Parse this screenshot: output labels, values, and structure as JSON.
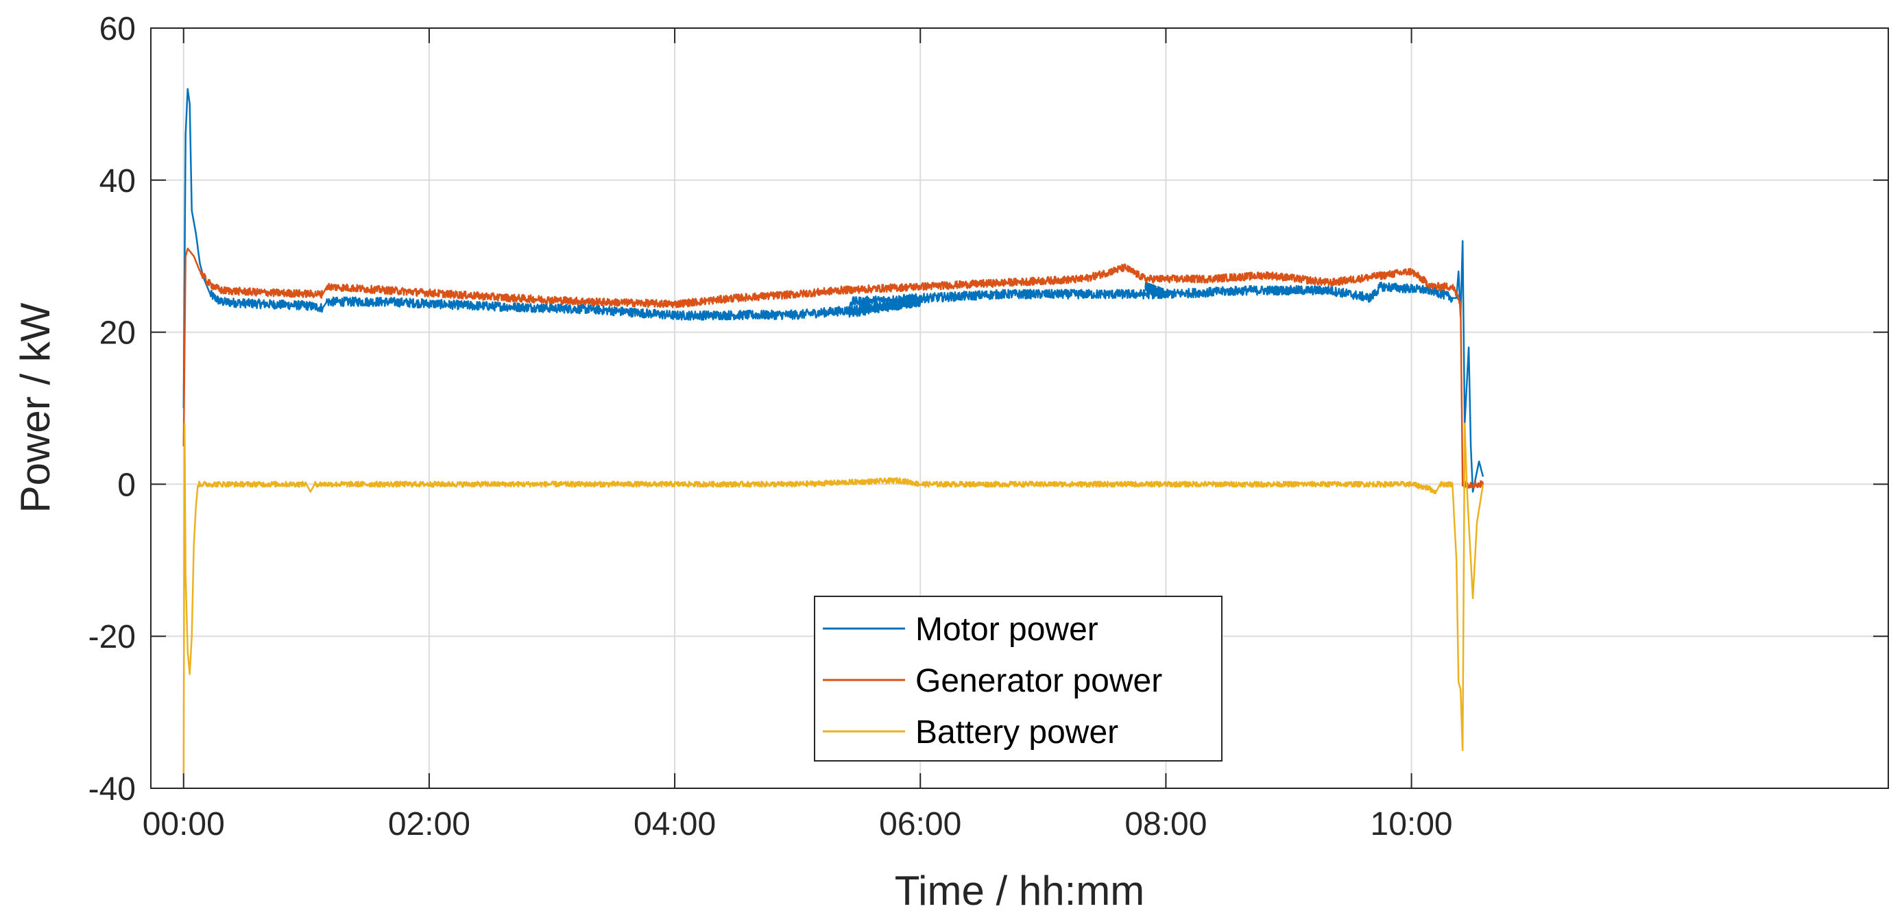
{
  "chart_data": {
    "type": "line",
    "title": "",
    "xlabel": "Time / hh:mm",
    "ylabel": "Power / kW",
    "xlim": [
      -16,
      833
    ],
    "ylim": [
      -40,
      60
    ],
    "x_ticks": [
      0,
      120,
      240,
      360,
      480,
      600
    ],
    "x_tick_labels": [
      "00:00",
      "02:00",
      "04:00",
      "06:00",
      "08:00",
      "10:00"
    ],
    "y_ticks": [
      -40,
      -20,
      0,
      20,
      40,
      60
    ],
    "y_tick_labels": [
      "-40",
      "-20",
      "0",
      "20",
      "40",
      "60"
    ],
    "grid": true,
    "legend_position": "bottom-center",
    "series": [
      {
        "name": "Motor power",
        "color": "#0072BD",
        "noise": 0.6,
        "points": [
          [
            0,
            10
          ],
          [
            1,
            46
          ],
          [
            2,
            52
          ],
          [
            3,
            50
          ],
          [
            4,
            36
          ],
          [
            6,
            33
          ],
          [
            8,
            29
          ],
          [
            10,
            27
          ],
          [
            13,
            25
          ],
          [
            18,
            24
          ],
          [
            30,
            23.8
          ],
          [
            60,
            23.5
          ],
          [
            68,
            23.2
          ],
          [
            70,
            24
          ],
          [
            100,
            24
          ],
          [
            140,
            23.5
          ],
          [
            200,
            23
          ],
          [
            240,
            22.2
          ],
          [
            300,
            22.3
          ],
          [
            330,
            23
          ],
          [
            360,
            24
          ],
          [
            325,
            22.5
          ],
          [
            326,
            24
          ],
          [
            400,
            25
          ],
          [
            480,
            25
          ],
          [
            470,
            26
          ],
          [
            480,
            25
          ],
          [
            520,
            25.5
          ],
          [
            560,
            25.5
          ],
          [
            580,
            24.5
          ],
          [
            585,
            26
          ],
          [
            610,
            25.5
          ],
          [
            620,
            24.5
          ],
          [
            622,
            24.5
          ],
          [
            623,
            28
          ],
          [
            624,
            22
          ],
          [
            625,
            32
          ],
          [
            626,
            8
          ],
          [
            628,
            18
          ],
          [
            629,
            5
          ],
          [
            630,
            -1
          ],
          [
            633,
            3
          ],
          [
            635,
            1
          ]
        ]
      },
      {
        "name": "Generator power",
        "color": "#D95319",
        "noise": 0.5,
        "points": [
          [
            0,
            5
          ],
          [
            1,
            30
          ],
          [
            2,
            31
          ],
          [
            5,
            30
          ],
          [
            8,
            28
          ],
          [
            12,
            26.5
          ],
          [
            18,
            25.5
          ],
          [
            40,
            25.2
          ],
          [
            68,
            25
          ],
          [
            70,
            26
          ],
          [
            100,
            25.5
          ],
          [
            160,
            24.5
          ],
          [
            200,
            24
          ],
          [
            240,
            23.7
          ],
          [
            270,
            24.5
          ],
          [
            300,
            25
          ],
          [
            320,
            25.5
          ],
          [
            360,
            26
          ],
          [
            400,
            26.5
          ],
          [
            440,
            27
          ],
          [
            460,
            28.5
          ],
          [
            470,
            27
          ],
          [
            500,
            27
          ],
          [
            530,
            27.5
          ],
          [
            560,
            26.5
          ],
          [
            600,
            28
          ],
          [
            610,
            26
          ],
          [
            620,
            26
          ],
          [
            624,
            24
          ],
          [
            625,
            0
          ],
          [
            635,
            0
          ]
        ]
      },
      {
        "name": "Battery power",
        "color": "#EDB120",
        "noise": 0.35,
        "points": [
          [
            0,
            -38
          ],
          [
            0.5,
            8
          ],
          [
            1,
            -12
          ],
          [
            2,
            -22
          ],
          [
            3,
            -25
          ],
          [
            4,
            -20
          ],
          [
            5,
            -8
          ],
          [
            6,
            -3
          ],
          [
            7,
            0
          ],
          [
            60,
            0
          ],
          [
            62,
            -1
          ],
          [
            64,
            0
          ],
          [
            300,
            0
          ],
          [
            350,
            0.5
          ],
          [
            360,
            0
          ],
          [
            600,
            0
          ],
          [
            608,
            -0.5
          ],
          [
            612,
            -1
          ],
          [
            614,
            0
          ],
          [
            620,
            0
          ],
          [
            622,
            -10
          ],
          [
            623,
            -26
          ],
          [
            624,
            -27
          ],
          [
            625,
            -35
          ],
          [
            626,
            8
          ],
          [
            627,
            0
          ],
          [
            630,
            -15
          ],
          [
            632,
            -5
          ],
          [
            635,
            0
          ]
        ]
      }
    ]
  }
}
